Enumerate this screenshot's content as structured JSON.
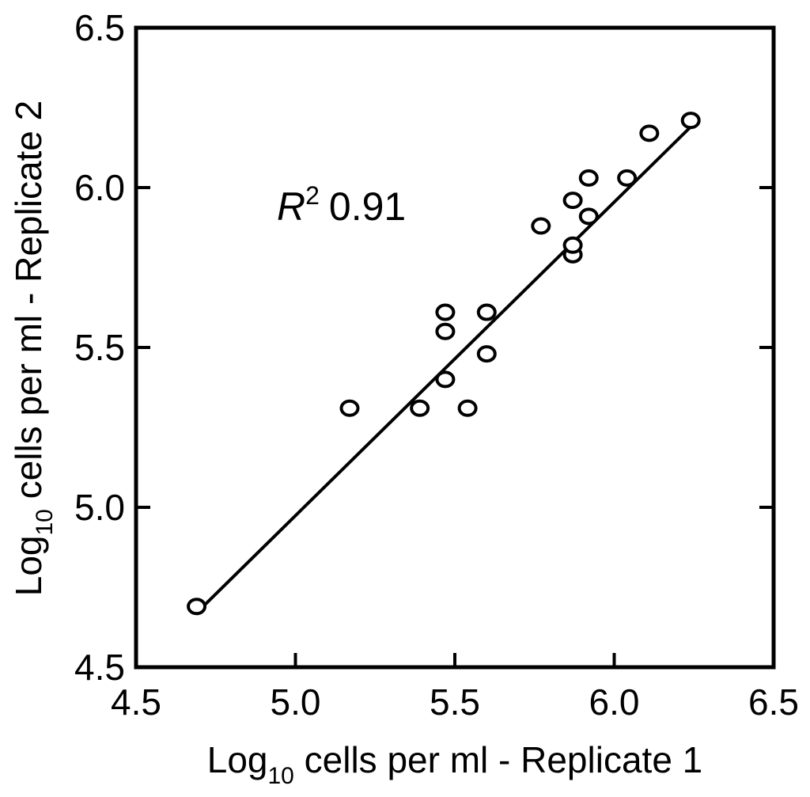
{
  "chart_data": {
    "type": "scatter",
    "title": "",
    "xlabel": {
      "prefix": "Log",
      "sub": "10",
      "rest": " cells per ml - Replicate 1"
    },
    "ylabel": {
      "prefix": "Log",
      "sub": "10",
      "rest": " cells per ml - Replicate 2"
    },
    "xlim": [
      4.5,
      6.5
    ],
    "ylim": [
      4.5,
      6.5
    ],
    "xticks": [
      4.5,
      5.0,
      5.5,
      6.0,
      6.5
    ],
    "yticks": [
      4.5,
      5.0,
      5.5,
      6.0,
      6.5
    ],
    "xtick_labels": [
      "4.5",
      "5.0",
      "5.5",
      "6.0",
      "6.5"
    ],
    "ytick_labels": [
      "4.5",
      "5.0",
      "5.5",
      "6.0",
      "6.5"
    ],
    "grid": false,
    "legend": "none",
    "annotation": {
      "symbol": "R",
      "superscript": "2",
      "value": "0.91"
    },
    "series": [
      {
        "points": [
          {
            "x": 4.69,
            "y": 4.69
          },
          {
            "x": 5.17,
            "y": 5.31
          },
          {
            "x": 5.39,
            "y": 5.31
          },
          {
            "x": 5.47,
            "y": 5.4
          },
          {
            "x": 5.54,
            "y": 5.31
          },
          {
            "x": 5.47,
            "y": 5.55
          },
          {
            "x": 5.47,
            "y": 5.61
          },
          {
            "x": 5.6,
            "y": 5.48
          },
          {
            "x": 5.6,
            "y": 5.61
          },
          {
            "x": 5.77,
            "y": 5.88
          },
          {
            "x": 5.87,
            "y": 5.79
          },
          {
            "x": 5.87,
            "y": 5.82
          },
          {
            "x": 5.87,
            "y": 5.96
          },
          {
            "x": 5.92,
            "y": 5.91
          },
          {
            "x": 5.92,
            "y": 6.03
          },
          {
            "x": 6.04,
            "y": 6.03
          },
          {
            "x": 6.11,
            "y": 6.17
          },
          {
            "x": 6.24,
            "y": 6.21
          }
        ]
      }
    ],
    "fit_line": {
      "x": [
        4.69,
        6.24
      ],
      "y": [
        4.67,
        6.19
      ]
    }
  }
}
